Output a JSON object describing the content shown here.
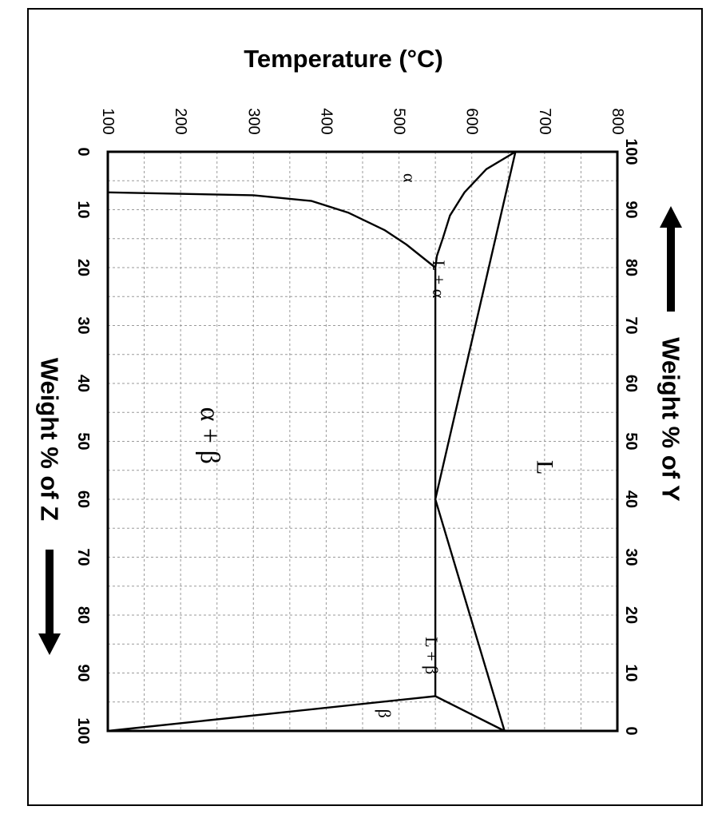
{
  "chart_data": {
    "type": "line",
    "title": "",
    "ylabel": "Temperature (°C)",
    "xlabel": "Weight % of Z",
    "x2label": "Weight % of Y",
    "xlim": [
      0,
      100
    ],
    "ylim": [
      100,
      800
    ],
    "x_ticks": [
      0,
      10,
      20,
      30,
      40,
      50,
      60,
      70,
      80,
      90,
      100
    ],
    "x_ticklabels": [
      "0",
      "10",
      "20",
      "30",
      "40",
      "50",
      "60",
      "70",
      "80",
      "90",
      "100"
    ],
    "x2_ticklabels": [
      "100",
      "90",
      "80",
      "70",
      "60",
      "50",
      "40",
      "30",
      "20",
      "10",
      "0"
    ],
    "y_ticks": [
      100,
      200,
      300,
      400,
      500,
      600,
      700,
      800
    ],
    "y_ticklabels": [
      "100",
      "200",
      "300",
      "400",
      "500",
      "600",
      "700",
      "800"
    ],
    "grid": true,
    "orientation": "rotated 90° clockwise",
    "series": [
      {
        "points": [
          [
            0,
            660
          ],
          [
            60,
            550
          ]
        ]
      },
      {
        "points": [
          [
            0,
            660
          ],
          [
            3,
            620
          ],
          [
            7,
            590
          ],
          [
            11,
            570
          ],
          [
            15,
            560
          ],
          [
            18,
            552
          ],
          [
            20,
            550
          ]
        ]
      },
      {
        "points": [
          [
            20,
            550
          ],
          [
            94,
            550
          ]
        ]
      },
      {
        "points": [
          [
            60,
            550
          ],
          [
            100,
            645
          ]
        ]
      },
      {
        "points": [
          [
            94,
            550
          ],
          [
            100,
            645
          ]
        ]
      },
      {
        "points": [
          [
            7,
            100
          ],
          [
            7.5,
            300
          ],
          [
            8.5,
            380
          ],
          [
            10.5,
            430
          ],
          [
            13.5,
            480
          ],
          [
            16,
            510
          ],
          [
            18,
            530
          ],
          [
            20,
            550
          ]
        ]
      },
      {
        "points": [
          [
            100,
            100
          ],
          [
            94,
            550
          ]
        ]
      }
    ],
    "annotations": [
      {
        "text": "α",
        "x": 4.5,
        "y": 515,
        "size": 22
      },
      {
        "text": "L + α",
        "x": 22,
        "y": 555,
        "size": 22
      },
      {
        "text": "α + β",
        "x": 49,
        "y": 240,
        "size": 34
      },
      {
        "text": "L",
        "x": 54.5,
        "y": 700,
        "size": 30
      },
      {
        "text": "L + β",
        "x": 87,
        "y": 545,
        "size": 22
      },
      {
        "text": "β",
        "x": 97,
        "y": 480,
        "size": 22
      }
    ]
  }
}
